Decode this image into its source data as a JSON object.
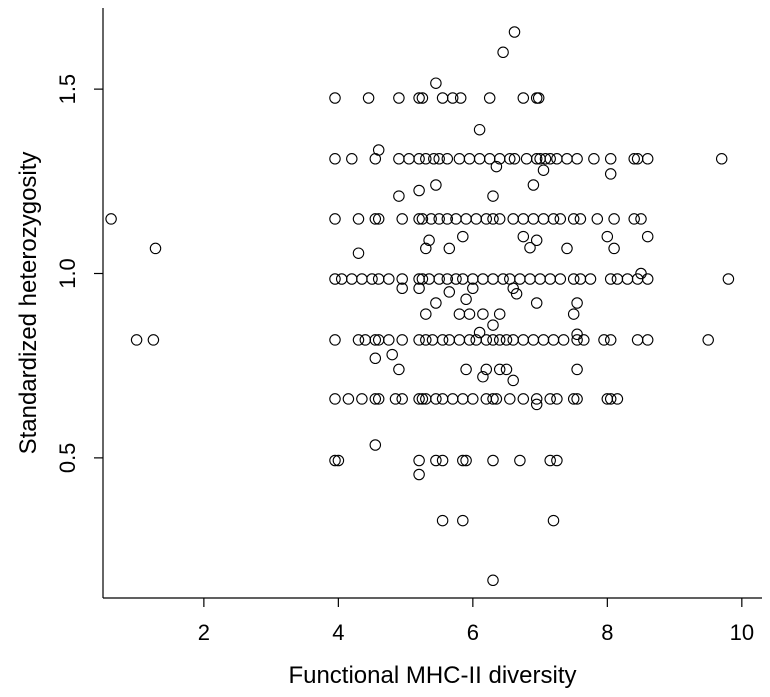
{
  "chart_data": {
    "type": "scatter",
    "xlabel": "Functional MHC-II diversity",
    "ylabel": "Standardized heterozygosity",
    "xlim": [
      0.5,
      10.3
    ],
    "ylim": [
      0.12,
      1.72
    ],
    "x_ticks": [
      2,
      4,
      6,
      8,
      10
    ],
    "y_ticks": [
      0.5,
      1.0,
      1.5
    ],
    "x_tick_labels": [
      "2",
      "4",
      "6",
      "8",
      "10"
    ],
    "y_tick_labels": [
      "0.5",
      "1.0",
      "1.5"
    ],
    "grid": false,
    "legend": "none",
    "marker": "open-circle",
    "points": [
      [
        0.62,
        1.148
      ],
      [
        1.0,
        0.82
      ],
      [
        1.25,
        0.82
      ],
      [
        1.28,
        1.068
      ],
      [
        3.95,
        1.476
      ],
      [
        4.45,
        1.476
      ],
      [
        4.9,
        1.476
      ],
      [
        5.2,
        1.476
      ],
      [
        5.25,
        1.476
      ],
      [
        5.45,
        1.516
      ],
      [
        5.55,
        1.476
      ],
      [
        5.7,
        1.476
      ],
      [
        5.82,
        1.476
      ],
      [
        6.25,
        1.476
      ],
      [
        6.45,
        1.6
      ],
      [
        6.62,
        1.655
      ],
      [
        6.75,
        1.476
      ],
      [
        6.95,
        1.476
      ],
      [
        6.98,
        1.476
      ],
      [
        6.1,
        1.39
      ],
      [
        3.95,
        1.311
      ],
      [
        4.2,
        1.311
      ],
      [
        4.55,
        1.311
      ],
      [
        4.6,
        1.335
      ],
      [
        4.9,
        1.311
      ],
      [
        5.05,
        1.311
      ],
      [
        5.2,
        1.311
      ],
      [
        5.3,
        1.311
      ],
      [
        5.42,
        1.311
      ],
      [
        5.5,
        1.311
      ],
      [
        5.62,
        1.311
      ],
      [
        5.8,
        1.311
      ],
      [
        5.95,
        1.311
      ],
      [
        6.1,
        1.311
      ],
      [
        6.25,
        1.311
      ],
      [
        6.4,
        1.311
      ],
      [
        6.55,
        1.311
      ],
      [
        6.62,
        1.311
      ],
      [
        6.8,
        1.311
      ],
      [
        6.95,
        1.311
      ],
      [
        7.0,
        1.311
      ],
      [
        7.08,
        1.311
      ],
      [
        7.15,
        1.311
      ],
      [
        7.25,
        1.311
      ],
      [
        7.4,
        1.311
      ],
      [
        7.55,
        1.311
      ],
      [
        7.8,
        1.311
      ],
      [
        8.05,
        1.311
      ],
      [
        8.4,
        1.311
      ],
      [
        8.45,
        1.311
      ],
      [
        8.6,
        1.311
      ],
      [
        9.7,
        1.311
      ],
      [
        4.9,
        1.21
      ],
      [
        5.2,
        1.225
      ],
      [
        5.45,
        1.24
      ],
      [
        6.3,
        1.21
      ],
      [
        6.35,
        1.29
      ],
      [
        6.9,
        1.24
      ],
      [
        7.05,
        1.28
      ],
      [
        8.05,
        1.27
      ],
      [
        3.95,
        1.148
      ],
      [
        4.3,
        1.148
      ],
      [
        4.55,
        1.148
      ],
      [
        4.6,
        1.148
      ],
      [
        4.95,
        1.148
      ],
      [
        5.2,
        1.148
      ],
      [
        5.25,
        1.148
      ],
      [
        5.38,
        1.148
      ],
      [
        5.5,
        1.148
      ],
      [
        5.62,
        1.148
      ],
      [
        5.75,
        1.148
      ],
      [
        5.9,
        1.148
      ],
      [
        6.05,
        1.148
      ],
      [
        6.2,
        1.148
      ],
      [
        6.3,
        1.148
      ],
      [
        6.4,
        1.148
      ],
      [
        6.6,
        1.148
      ],
      [
        6.75,
        1.148
      ],
      [
        6.9,
        1.148
      ],
      [
        7.05,
        1.148
      ],
      [
        7.2,
        1.148
      ],
      [
        7.3,
        1.148
      ],
      [
        7.5,
        1.148
      ],
      [
        7.6,
        1.148
      ],
      [
        7.85,
        1.148
      ],
      [
        8.1,
        1.148
      ],
      [
        8.4,
        1.148
      ],
      [
        8.5,
        1.148
      ],
      [
        4.3,
        1.055
      ],
      [
        5.3,
        1.068
      ],
      [
        5.35,
        1.09
      ],
      [
        5.65,
        1.068
      ],
      [
        5.85,
        1.1
      ],
      [
        6.75,
        1.1
      ],
      [
        6.85,
        1.07
      ],
      [
        6.95,
        1.09
      ],
      [
        7.4,
        1.068
      ],
      [
        8.0,
        1.1
      ],
      [
        8.1,
        1.068
      ],
      [
        8.6,
        1.1
      ],
      [
        3.95,
        0.985
      ],
      [
        4.05,
        0.985
      ],
      [
        4.2,
        0.985
      ],
      [
        4.35,
        0.985
      ],
      [
        4.5,
        0.985
      ],
      [
        4.6,
        0.985
      ],
      [
        4.75,
        0.985
      ],
      [
        4.95,
        0.985
      ],
      [
        5.2,
        0.985
      ],
      [
        5.25,
        0.985
      ],
      [
        5.35,
        0.985
      ],
      [
        5.5,
        0.985
      ],
      [
        5.62,
        0.985
      ],
      [
        5.75,
        0.985
      ],
      [
        5.85,
        0.985
      ],
      [
        6.0,
        0.985
      ],
      [
        6.15,
        0.985
      ],
      [
        6.3,
        0.985
      ],
      [
        6.45,
        0.985
      ],
      [
        6.55,
        0.985
      ],
      [
        6.7,
        0.985
      ],
      [
        6.85,
        0.985
      ],
      [
        7.0,
        0.985
      ],
      [
        7.15,
        0.985
      ],
      [
        7.3,
        0.985
      ],
      [
        7.5,
        0.985
      ],
      [
        7.6,
        0.985
      ],
      [
        7.75,
        0.985
      ],
      [
        8.05,
        0.985
      ],
      [
        8.15,
        0.985
      ],
      [
        8.3,
        0.985
      ],
      [
        8.45,
        0.985
      ],
      [
        8.5,
        1.0
      ],
      [
        8.6,
        0.985
      ],
      [
        9.8,
        0.985
      ],
      [
        4.95,
        0.96
      ],
      [
        5.2,
        0.96
      ],
      [
        5.65,
        0.95
      ],
      [
        5.9,
        0.93
      ],
      [
        6.0,
        0.96
      ],
      [
        6.6,
        0.96
      ],
      [
        6.65,
        0.945
      ],
      [
        6.95,
        0.92
      ],
      [
        7.55,
        0.92
      ],
      [
        5.3,
        0.89
      ],
      [
        5.45,
        0.92
      ],
      [
        5.8,
        0.89
      ],
      [
        5.95,
        0.89
      ],
      [
        6.15,
        0.89
      ],
      [
        6.4,
        0.89
      ],
      [
        7.5,
        0.89
      ],
      [
        6.1,
        0.84
      ],
      [
        6.3,
        0.86
      ],
      [
        3.95,
        0.82
      ],
      [
        4.3,
        0.82
      ],
      [
        4.4,
        0.82
      ],
      [
        4.55,
        0.82
      ],
      [
        4.6,
        0.82
      ],
      [
        4.75,
        0.82
      ],
      [
        4.95,
        0.82
      ],
      [
        5.2,
        0.82
      ],
      [
        5.3,
        0.82
      ],
      [
        5.4,
        0.82
      ],
      [
        5.55,
        0.82
      ],
      [
        5.65,
        0.82
      ],
      [
        5.8,
        0.82
      ],
      [
        5.95,
        0.82
      ],
      [
        6.05,
        0.82
      ],
      [
        6.2,
        0.82
      ],
      [
        6.3,
        0.82
      ],
      [
        6.4,
        0.82
      ],
      [
        6.5,
        0.82
      ],
      [
        6.6,
        0.82
      ],
      [
        6.75,
        0.82
      ],
      [
        6.9,
        0.82
      ],
      [
        7.05,
        0.82
      ],
      [
        7.2,
        0.82
      ],
      [
        7.35,
        0.82
      ],
      [
        7.55,
        0.82
      ],
      [
        7.65,
        0.82
      ],
      [
        7.95,
        0.82
      ],
      [
        8.05,
        0.82
      ],
      [
        8.45,
        0.82
      ],
      [
        8.6,
        0.82
      ],
      [
        9.5,
        0.82
      ],
      [
        7.55,
        0.835
      ],
      [
        4.55,
        0.77
      ],
      [
        4.8,
        0.78
      ],
      [
        4.9,
        0.74
      ],
      [
        5.9,
        0.74
      ],
      [
        6.15,
        0.72
      ],
      [
        6.2,
        0.74
      ],
      [
        6.4,
        0.74
      ],
      [
        6.5,
        0.74
      ],
      [
        6.6,
        0.71
      ],
      [
        7.55,
        0.74
      ],
      [
        3.95,
        0.66
      ],
      [
        4.15,
        0.66
      ],
      [
        4.35,
        0.66
      ],
      [
        4.55,
        0.66
      ],
      [
        4.6,
        0.66
      ],
      [
        4.85,
        0.66
      ],
      [
        4.95,
        0.66
      ],
      [
        5.2,
        0.66
      ],
      [
        5.25,
        0.66
      ],
      [
        5.3,
        0.66
      ],
      [
        5.45,
        0.66
      ],
      [
        5.55,
        0.66
      ],
      [
        5.7,
        0.66
      ],
      [
        5.85,
        0.66
      ],
      [
        6.0,
        0.66
      ],
      [
        6.2,
        0.66
      ],
      [
        6.3,
        0.66
      ],
      [
        6.35,
        0.66
      ],
      [
        6.55,
        0.66
      ],
      [
        6.75,
        0.66
      ],
      [
        6.95,
        0.66
      ],
      [
        7.15,
        0.66
      ],
      [
        7.25,
        0.66
      ],
      [
        7.5,
        0.66
      ],
      [
        7.55,
        0.66
      ],
      [
        8.0,
        0.66
      ],
      [
        8.05,
        0.66
      ],
      [
        8.15,
        0.66
      ],
      [
        6.95,
        0.645
      ],
      [
        3.95,
        0.493
      ],
      [
        4.0,
        0.493
      ],
      [
        4.55,
        0.535
      ],
      [
        5.2,
        0.493
      ],
      [
        5.2,
        0.455
      ],
      [
        5.45,
        0.493
      ],
      [
        5.55,
        0.493
      ],
      [
        5.85,
        0.493
      ],
      [
        5.9,
        0.493
      ],
      [
        6.3,
        0.493
      ],
      [
        6.7,
        0.493
      ],
      [
        7.15,
        0.493
      ],
      [
        7.25,
        0.493
      ],
      [
        5.55,
        0.33
      ],
      [
        5.85,
        0.33
      ],
      [
        7.2,
        0.33
      ],
      [
        6.3,
        0.168
      ]
    ]
  }
}
